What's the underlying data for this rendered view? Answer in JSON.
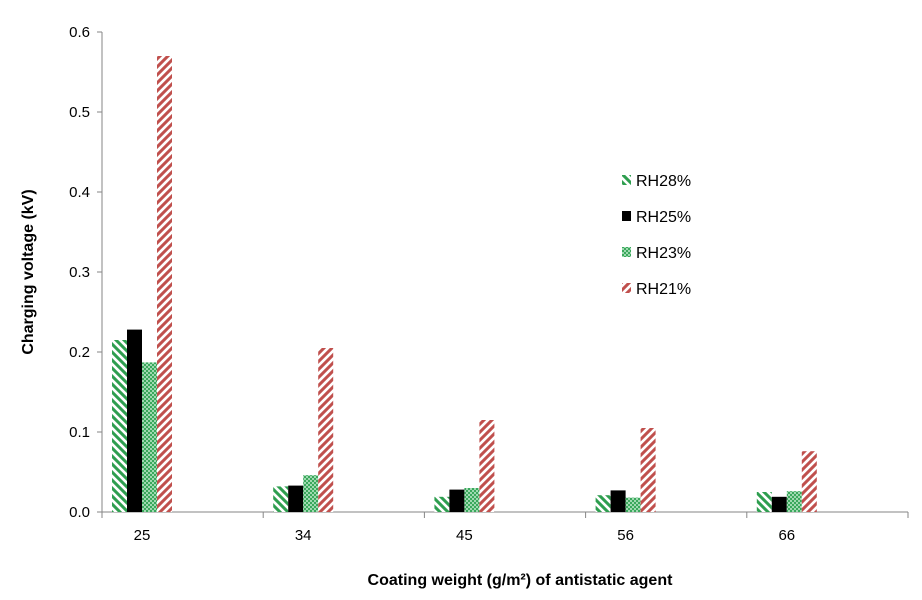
{
  "chart_data": {
    "type": "bar",
    "xlabel": "Coating weight (g/m²) of antistatic agent",
    "ylabel": "Charging voltage (kV)",
    "categories": [
      "25",
      "34",
      "45",
      "56",
      "66"
    ],
    "ylim": [
      0,
      0.6
    ],
    "yticks": [
      "0.0",
      "0.1",
      "0.2",
      "0.3",
      "0.4",
      "0.5",
      "0.6"
    ],
    "grid": false,
    "legend_position": "right",
    "series": [
      {
        "name": "RH28%",
        "values": [
          0.215,
          0.032,
          0.019,
          0.021,
          0.025
        ],
        "color": "#2e9e4f",
        "pattern": "diagonal-down-wide"
      },
      {
        "name": "RH25%",
        "values": [
          0.228,
          0.033,
          0.028,
          0.027,
          0.019
        ],
        "color": "#000000",
        "pattern": "solid"
      },
      {
        "name": "RH23%",
        "values": [
          0.187,
          0.046,
          0.03,
          0.018,
          0.026
        ],
        "color": "#4cba6e",
        "pattern": "dotted"
      },
      {
        "name": "RH21%",
        "values": [
          0.57,
          0.205,
          0.115,
          0.105,
          0.076
        ],
        "color": "#c0504d",
        "pattern": "diagonal-up-wide"
      }
    ]
  }
}
